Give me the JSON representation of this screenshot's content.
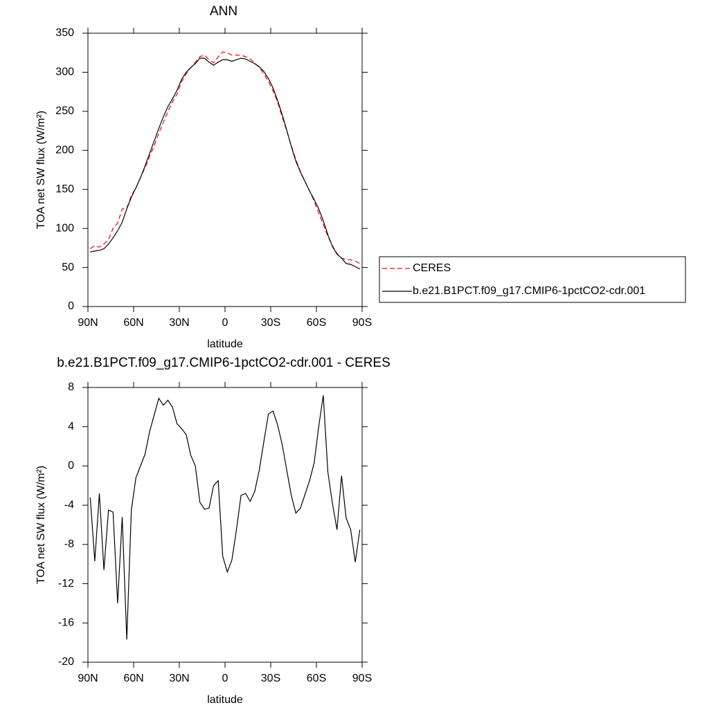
{
  "chart_data": [
    {
      "type": "line",
      "title": "ANN",
      "xlabel": "latitude",
      "ylabel": "TOA net SW flux (W/m²)",
      "x": [
        88.5,
        85.5,
        82.5,
        79.5,
        76.5,
        73.5,
        70.5,
        67.5,
        64.5,
        61.5,
        58.5,
        55.5,
        52.5,
        49.5,
        46.5,
        43.5,
        40.5,
        37.5,
        34.5,
        31.5,
        28.5,
        25.5,
        22.5,
        19.5,
        16.5,
        13.5,
        10.5,
        7.5,
        4.5,
        1.5,
        -1.5,
        -4.5,
        -7.5,
        -10.5,
        -13.5,
        -16.5,
        -19.5,
        -22.5,
        -25.5,
        -28.5,
        -31.5,
        -34.5,
        -37.5,
        -40.5,
        -43.5,
        -46.5,
        -49.5,
        -52.5,
        -55.5,
        -58.5,
        -61.5,
        -64.5,
        -67.5,
        -70.5,
        -73.5,
        -76.5,
        -79.5,
        -82.5,
        -85.5,
        -88.5
      ],
      "xlim": [
        90,
        -90
      ],
      "xticks": [
        {
          "value": 90,
          "label": "90N"
        },
        {
          "value": 60,
          "label": "60N"
        },
        {
          "value": 30,
          "label": "30N"
        },
        0,
        {
          "value": -30,
          "label": "30S"
        },
        {
          "value": -60,
          "label": "60S"
        },
        {
          "value": -90,
          "label": "90S"
        }
      ],
      "ylim": [
        0,
        350
      ],
      "yticks": [
        0,
        50,
        100,
        150,
        200,
        250,
        300,
        350
      ],
      "legend": "right",
      "series": [
        {
          "name": "CERES",
          "color": "#ff0000",
          "linestyle": "dashed",
          "values": [
            74,
            78,
            76,
            80,
            86,
            100,
            107,
            125,
            126,
            142,
            152,
            165,
            178,
            192,
            206,
            222,
            236,
            250,
            262,
            272,
            288,
            298,
            306,
            313,
            320,
            322,
            316,
            312,
            320,
            326,
            325,
            322,
            322,
            322,
            320,
            317,
            312,
            306,
            298,
            288,
            276,
            262,
            243,
            225,
            206,
            188,
            173,
            160,
            148,
            135,
            120,
            105,
            90,
            78,
            68,
            62,
            60,
            60,
            58,
            55
          ]
        },
        {
          "name": "b.e21.B1PCT.f09_g17.CMIP6-1pctCO2-cdr.001",
          "color": "#000000",
          "linestyle": "solid",
          "values": [
            70,
            71,
            72,
            74,
            80,
            88,
            97,
            108,
            125,
            140,
            152,
            165,
            180,
            196,
            212,
            228,
            243,
            256,
            266,
            277,
            291,
            300,
            306,
            311,
            318,
            318,
            313,
            309,
            313,
            316,
            316,
            314,
            316,
            318,
            317,
            314,
            311,
            307,
            301,
            292,
            280,
            264,
            246,
            226,
            205,
            186,
            172,
            160,
            148,
            137,
            125,
            110,
            92,
            77,
            67,
            62,
            55,
            54,
            51,
            48
          ]
        }
      ]
    },
    {
      "type": "line",
      "title": "b.e21.B1PCT.f09_g17.CMIP6-1pctCO2-cdr.001 - CERES",
      "xlabel": "latitude",
      "ylabel": "TOA net SW flux (W/m²)",
      "x": [
        88.5,
        85.5,
        82.5,
        79.5,
        76.5,
        73.5,
        70.5,
        67.5,
        64.5,
        61.5,
        58.5,
        55.5,
        52.5,
        49.5,
        46.5,
        43.5,
        40.5,
        37.5,
        34.5,
        31.5,
        28.5,
        25.5,
        22.5,
        19.5,
        16.5,
        13.5,
        10.5,
        7.5,
        4.5,
        1.5,
        -1.5,
        -4.5,
        -7.5,
        -10.5,
        -13.5,
        -16.5,
        -19.5,
        -22.5,
        -25.5,
        -28.5,
        -31.5,
        -34.5,
        -37.5,
        -40.5,
        -43.5,
        -46.5,
        -49.5,
        -52.5,
        -55.5,
        -58.5,
        -61.5,
        -64.5,
        -67.5,
        -70.5,
        -73.5,
        -76.5,
        -79.5,
        -82.5,
        -85.5,
        -88.5
      ],
      "xlim": [
        90,
        -90
      ],
      "xticks": [
        {
          "value": 90,
          "label": "90N"
        },
        {
          "value": 60,
          "label": "60N"
        },
        {
          "value": 30,
          "label": "30N"
        },
        0,
        {
          "value": -30,
          "label": "30S"
        },
        {
          "value": -60,
          "label": "60S"
        },
        {
          "value": -90,
          "label": "90S"
        }
      ],
      "ylim": [
        -20,
        8
      ],
      "yticks": [
        -20,
        -16,
        -12,
        -8,
        -4,
        0,
        4,
        8
      ],
      "series": [
        {
          "color": "#000000",
          "linestyle": "solid",
          "values": [
            -3.2,
            -9.7,
            -2.8,
            -10.6,
            -4.5,
            -4.7,
            -14.0,
            -5.2,
            -17.7,
            -4.5,
            -1.2,
            0,
            1.2,
            3.5,
            5.2,
            6.9,
            6.2,
            6.7,
            6.0,
            4.3,
            3.8,
            3.2,
            1.1,
            0,
            -3.7,
            -4.4,
            -4.3,
            -2,
            -1.5,
            -9.2,
            -10.8,
            -9.6,
            -6.5,
            -3,
            -2.8,
            -3.6,
            -2.6,
            -0.4,
            2.5,
            5.3,
            5.6,
            4.2,
            2.2,
            -0.4,
            -3.0,
            -4.8,
            -4.3,
            -2.9,
            -1.5,
            0.3,
            4.0,
            7.2,
            -0.6,
            -3.8,
            -6.5,
            -1.0,
            -5.3,
            -6.5,
            -9.8,
            -6.5
          ]
        }
      ]
    }
  ]
}
